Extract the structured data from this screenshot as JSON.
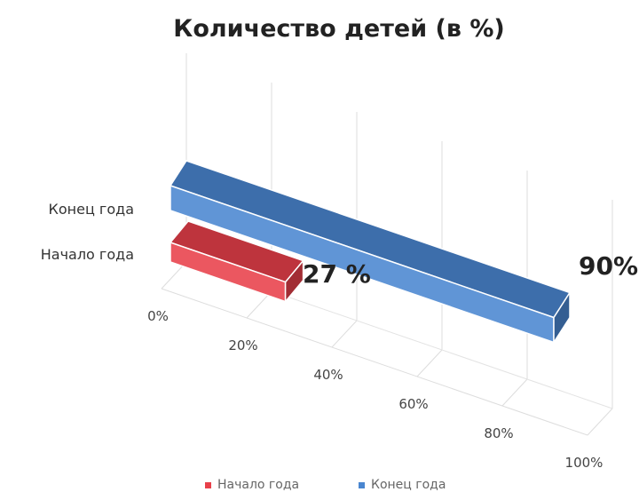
{
  "chart_data": {
    "type": "bar",
    "orientation": "horizontal",
    "style": "3d",
    "title": "Количество детей (в %)",
    "categories": [
      "Конец года",
      "Начало года"
    ],
    "series": [
      {
        "name": "Начало года",
        "values": [
          null,
          27
        ],
        "label": "27 %",
        "color": "#e8404a"
      },
      {
        "name": "Конец года",
        "values": [
          90,
          null
        ],
        "label": "90%",
        "color": "#4a86d0"
      }
    ],
    "xlim": [
      0,
      100
    ],
    "x_ticks": [
      "0%",
      "20%",
      "40%",
      "60%",
      "80%",
      "100%"
    ],
    "grid": true,
    "legend": "bottom",
    "legend_entries": [
      "Начало года",
      "Конец года"
    ]
  }
}
